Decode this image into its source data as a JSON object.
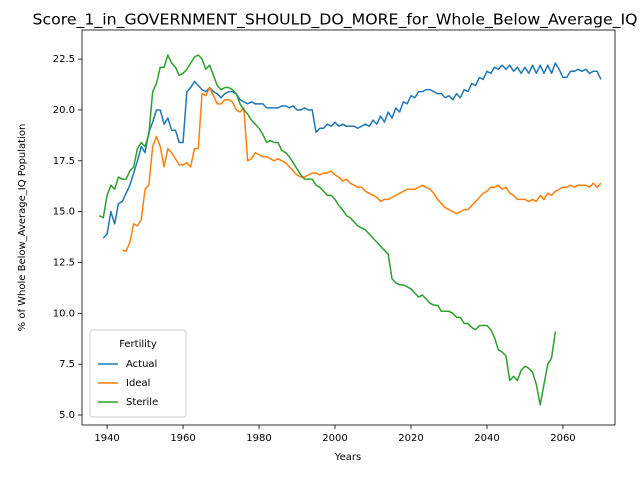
{
  "chart_data": {
    "type": "line",
    "title": "Score_1_in_GOVERNMENT_SHOULD_DO_MORE_for_Whole_Below_Average_IQ",
    "xlabel": "Years",
    "ylabel": "% of Whole Below_Average_IQ Population",
    "legend_title": "Fertility",
    "legend": "lower left",
    "grid": false,
    "xlim": [
      1933.4,
      2073.7
    ],
    "ylim": [
      4.51,
      23.93
    ],
    "xticks": [
      1940,
      1960,
      1980,
      2000,
      2020,
      2040,
      2060
    ],
    "yticks": [
      {
        "value": 5,
        "label": "5.0"
      },
      7.5,
      {
        "value": 10,
        "label": "10.0"
      },
      12.5,
      {
        "value": 15,
        "label": "15.0"
      },
      17.5,
      {
        "value": 20,
        "label": "20.0"
      },
      22.5
    ],
    "x": [
      1938,
      1939,
      1940,
      1941,
      1942,
      1943,
      1944,
      1945,
      1946,
      1947,
      1948,
      1949,
      1950,
      1951,
      1952,
      1953,
      1954,
      1955,
      1956,
      1957,
      1958,
      1959,
      1960,
      1961,
      1962,
      1963,
      1964,
      1965,
      1966,
      1967,
      1968,
      1969,
      1970,
      1971,
      1972,
      1973,
      1974,
      1975,
      1976,
      1977,
      1978,
      1979,
      1980,
      1981,
      1982,
      1983,
      1984,
      1985,
      1986,
      1987,
      1988,
      1989,
      1990,
      1991,
      1992,
      1993,
      1994,
      1995,
      1996,
      1997,
      1998,
      1999,
      2000,
      2001,
      2002,
      2003,
      2004,
      2005,
      2006,
      2007,
      2008,
      2009,
      2010,
      2011,
      2012,
      2013,
      2014,
      2015,
      2016,
      2017,
      2018,
      2019,
      2020,
      2021,
      2022,
      2023,
      2024,
      2025,
      2026,
      2027,
      2028,
      2029,
      2030,
      2031,
      2032,
      2033,
      2034,
      2035,
      2036,
      2037,
      2038,
      2039,
      2040,
      2041,
      2042,
      2043,
      2044,
      2045,
      2046,
      2047,
      2048,
      2049,
      2050,
      2051,
      2052,
      2053,
      2054,
      2055,
      2056,
      2057,
      2058,
      2059,
      2060,
      2061,
      2062,
      2063,
      2064,
      2065,
      2066,
      2067,
      2068,
      2069,
      2070
    ],
    "series": [
      {
        "name": "Actual",
        "color": "#1f77b4",
        "values": [
          null,
          13.7,
          13.9,
          15.0,
          14.4,
          15.4,
          15.5,
          15.9,
          16.3,
          16.9,
          17.5,
          18.2,
          17.9,
          18.9,
          19.4,
          20.0,
          20.0,
          19.3,
          19.6,
          19.0,
          19.0,
          18.4,
          18.4,
          20.9,
          21.1,
          21.4,
          21.2,
          21.0,
          20.9,
          21.1,
          20.9,
          20.8,
          20.6,
          20.8,
          20.9,
          20.9,
          20.8,
          20.5,
          20.4,
          20.3,
          20.4,
          20.3,
          20.3,
          20.3,
          20.1,
          20.1,
          20.1,
          20.1,
          20.2,
          20.2,
          20.1,
          20.2,
          20.0,
          20.0,
          20.1,
          20.0,
          20.0,
          18.9,
          19.1,
          19.1,
          19.3,
          19.2,
          19.4,
          19.2,
          19.3,
          19.2,
          19.2,
          19.2,
          19.1,
          19.2,
          19.3,
          19.2,
          19.5,
          19.3,
          19.7,
          19.4,
          19.9,
          19.6,
          20.1,
          19.9,
          20.4,
          20.3,
          20.7,
          20.6,
          20.9,
          20.9,
          21.0,
          21.0,
          20.9,
          20.8,
          20.8,
          20.6,
          20.7,
          20.5,
          20.8,
          20.6,
          21.0,
          20.9,
          21.3,
          21.2,
          21.6,
          21.5,
          21.9,
          21.8,
          22.1,
          22.0,
          22.2,
          22.0,
          22.2,
          21.9,
          22.1,
          21.8,
          22.1,
          21.8,
          22.2,
          21.8,
          22.2,
          21.8,
          22.2,
          21.8,
          22.3,
          22.0,
          21.6,
          21.6,
          21.9,
          21.9,
          22.0,
          21.9,
          22.0,
          21.8,
          21.9,
          21.9,
          21.5
        ]
      },
      {
        "name": "Ideal",
        "color": "#ff7f0e",
        "values": [
          null,
          null,
          null,
          null,
          null,
          null,
          13.1,
          13.05,
          13.5,
          14.4,
          14.3,
          14.6,
          16.1,
          16.3,
          18.2,
          18.7,
          18.2,
          17.2,
          18.1,
          17.9,
          17.6,
          17.3,
          17.3,
          17.4,
          17.2,
          18.1,
          18.1,
          20.8,
          20.7,
          21.1,
          20.7,
          20.3,
          20.3,
          20.5,
          20.5,
          20.4,
          20.0,
          19.9,
          20.1,
          17.5,
          17.6,
          17.9,
          17.8,
          17.7,
          17.7,
          17.6,
          17.5,
          17.6,
          17.5,
          17.4,
          17.2,
          17.0,
          16.8,
          16.7,
          16.7,
          16.8,
          16.9,
          16.9,
          16.8,
          16.9,
          16.9,
          17.0,
          16.8,
          16.7,
          16.5,
          16.6,
          16.4,
          16.3,
          16.2,
          16.2,
          16.0,
          15.9,
          15.8,
          15.7,
          15.5,
          15.6,
          15.6,
          15.7,
          15.8,
          15.9,
          16.0,
          16.1,
          16.1,
          16.1,
          16.2,
          16.3,
          16.2,
          16.1,
          15.9,
          15.6,
          15.4,
          15.2,
          15.1,
          15.0,
          14.9,
          15.0,
          15.1,
          15.1,
          15.3,
          15.5,
          15.7,
          15.9,
          16.0,
          16.2,
          16.2,
          16.3,
          16.1,
          16.2,
          15.9,
          15.8,
          15.6,
          15.6,
          15.6,
          15.5,
          15.6,
          15.5,
          15.8,
          15.6,
          15.9,
          15.8,
          16.0,
          16.1,
          16.2,
          16.2,
          16.3,
          16.2,
          16.3,
          16.3,
          16.3,
          16.2,
          16.4,
          16.2,
          16.4
        ]
      },
      {
        "name": "Sterile",
        "color": "#2ca02c",
        "values": [
          14.8,
          14.7,
          15.8,
          16.3,
          16.1,
          16.7,
          16.6,
          16.6,
          17.0,
          17.2,
          18.1,
          18.4,
          18.2,
          18.8,
          20.9,
          21.3,
          22.1,
          22.1,
          22.7,
          22.3,
          22.1,
          21.7,
          21.8,
          22.0,
          22.3,
          22.6,
          22.7,
          22.5,
          22.0,
          22.2,
          21.7,
          21.2,
          21.0,
          21.1,
          21.1,
          21.0,
          20.8,
          20.3,
          20.0,
          19.8,
          19.5,
          19.3,
          19.1,
          18.8,
          18.4,
          18.5,
          18.4,
          18.4,
          18.0,
          17.9,
          17.7,
          17.4,
          17.1,
          16.8,
          16.6,
          16.6,
          16.6,
          16.3,
          16.2,
          16.0,
          15.8,
          15.8,
          15.6,
          15.3,
          15.1,
          14.8,
          14.7,
          14.5,
          14.3,
          14.2,
          14.1,
          13.9,
          13.7,
          13.5,
          13.3,
          13.1,
          12.9,
          11.7,
          11.5,
          11.4,
          11.4,
          11.3,
          11.2,
          11.0,
          10.8,
          10.9,
          10.7,
          10.5,
          10.4,
          10.4,
          10.1,
          10.1,
          10.1,
          10.0,
          9.8,
          9.8,
          9.5,
          9.5,
          9.3,
          9.2,
          9.4,
          9.4,
          9.4,
          9.2,
          8.8,
          8.2,
          8.1,
          7.9,
          6.7,
          6.9,
          6.7,
          7.2,
          7.4,
          7.3,
          7.1,
          6.5,
          5.5,
          6.5,
          7.5,
          7.8,
          9.1,
          null,
          null,
          null,
          null,
          null,
          null,
          null,
          null,
          null,
          null,
          null,
          null
        ]
      }
    ]
  }
}
